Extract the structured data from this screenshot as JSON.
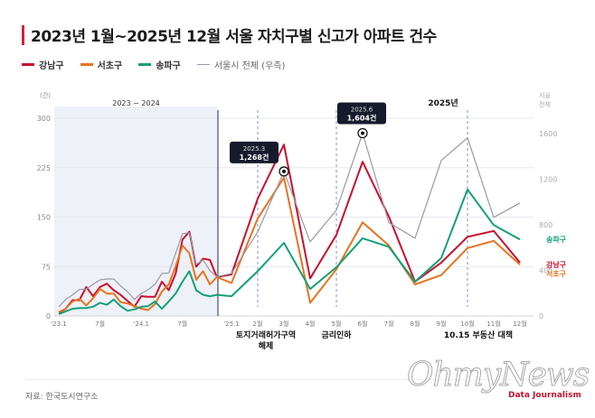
{
  "title": "2023년 1월~2025년 12월 서울 자치구별 신고가 아파트 건수",
  "legend": [
    {
      "label": "강남구",
      "color": "#c8102e"
    },
    {
      "label": "서초구",
      "color": "#e8731e"
    },
    {
      "label": "송파구",
      "color": "#13a077"
    },
    {
      "label": "서울시 전체 (우측)",
      "color": "#9a9aa6"
    }
  ],
  "source": "자료: 한국도시연구소",
  "watermark": "OhmyNews",
  "watermark_sub": "Data Journalism",
  "chart_data": {
    "type": "line",
    "title": "2023년 1월~2025년 12월 서울 자치구별 신고가 아파트 건수",
    "left_axis_unit": "(건)",
    "right_axis_title": "서울 전체",
    "left_ylim": [
      0,
      300
    ],
    "left_ticks": [
      0,
      75,
      150,
      225,
      300
    ],
    "right_ylim": [
      0,
      1800
    ],
    "right_ticks": [
      0,
      400,
      800,
      1200,
      1600
    ],
    "period_labels": {
      "shaded": "2023 ~ 2024",
      "current": "2025년"
    },
    "x": [
      "2023.1",
      "2023.2",
      "2023.3",
      "2023.4",
      "2023.5",
      "2023.6",
      "2023.7",
      "2023.8",
      "2023.9",
      "2023.10",
      "2023.11",
      "2023.12",
      "2024.1",
      "2024.2",
      "2024.3",
      "2024.4",
      "2024.5",
      "2024.6",
      "2024.7",
      "2024.8",
      "2024.9",
      "2024.10",
      "2024.11",
      "2024.12",
      "2025.1",
      "2025.2",
      "2025.3",
      "2025.4",
      "2025.5",
      "2025.6",
      "2025.7",
      "2025.8",
      "2025.9",
      "2025.10",
      "2025.11",
      "2025.12"
    ],
    "x_tick_labels": [
      {
        "index": 0,
        "label": "'23.1"
      },
      {
        "index": 6,
        "label": "7월"
      },
      {
        "index": 12,
        "label": "'24.1"
      },
      {
        "index": 18,
        "label": "7월"
      },
      {
        "index": 24,
        "label": "'25.1"
      },
      {
        "index": 25,
        "label": "2월"
      },
      {
        "index": 26,
        "label": "3월"
      },
      {
        "index": 27,
        "label": "4월"
      },
      {
        "index": 28,
        "label": "5월"
      },
      {
        "index": 29,
        "label": "6월"
      },
      {
        "index": 30,
        "label": "7월"
      },
      {
        "index": 31,
        "label": "8월"
      },
      {
        "index": 32,
        "label": "9월"
      },
      {
        "index": 33,
        "label": "10월"
      },
      {
        "index": 34,
        "label": "11월"
      },
      {
        "index": 35,
        "label": "12월"
      }
    ],
    "series": [
      {
        "name": "강남구",
        "axis": "left",
        "color": "#c8102e",
        "values": [
          5,
          11,
          24,
          24,
          44,
          30,
          44,
          49,
          39,
          32,
          23,
          14,
          30,
          29,
          29,
          52,
          39,
          64,
          116,
          128,
          75,
          87,
          85,
          59,
          63,
          178,
          260,
          57,
          123,
          234,
          151,
          52,
          81,
          120,
          129,
          81
        ]
      },
      {
        "name": "서초구",
        "axis": "left",
        "color": "#e8731e",
        "values": [
          6,
          11,
          22,
          26,
          16,
          27,
          41,
          34,
          34,
          21,
          19,
          15,
          11,
          9,
          18,
          37,
          48,
          75,
          107,
          95,
          55,
          68,
          48,
          59,
          50,
          148,
          210,
          20,
          71,
          142,
          107,
          48,
          62,
          103,
          114,
          78
        ]
      },
      {
        "name": "송파구",
        "axis": "left",
        "color": "#13a077",
        "values": [
          3,
          7,
          11,
          12,
          12,
          14,
          20,
          17,
          25,
          15,
          8,
          10,
          14,
          15,
          22,
          11,
          22,
          34,
          52,
          68,
          39,
          32,
          30,
          32,
          30,
          68,
          111,
          41,
          74,
          118,
          105,
          52,
          88,
          192,
          138,
          116
        ]
      },
      {
        "name": "서울시 전체",
        "axis": "right",
        "color": "#9a9aa6",
        "values": [
          80,
          145,
          185,
          232,
          238,
          278,
          317,
          325,
          325,
          264,
          214,
          145,
          198,
          230,
          278,
          373,
          376,
          550,
          722,
          730,
          452,
          492,
          397,
          344,
          373,
          738,
          1268,
          650,
          928,
          1604,
          818,
          683,
          1365,
          1563,
          865,
          992
        ]
      }
    ],
    "callouts": [
      {
        "index": 26,
        "series": "서울시 전체",
        "date": "2025.3",
        "value": "1,268건"
      },
      {
        "index": 29,
        "series": "서울시 전체",
        "date": "2025.6",
        "value": "1,604건"
      }
    ],
    "events": [
      {
        "index": 25,
        "label_lines": [
          "토지거래허가구역",
          "해제"
        ]
      },
      {
        "index": 28,
        "label_lines": [
          "금리인하"
        ]
      },
      {
        "index": 33,
        "label_lines": [
          "10.15 부동산 대책"
        ]
      }
    ],
    "end_labels": [
      {
        "series": "송파구",
        "label": "송파구"
      },
      {
        "series": "강남구",
        "label": "강남구"
      },
      {
        "series": "서초구",
        "label": "서초구"
      }
    ],
    "grid": true
  }
}
